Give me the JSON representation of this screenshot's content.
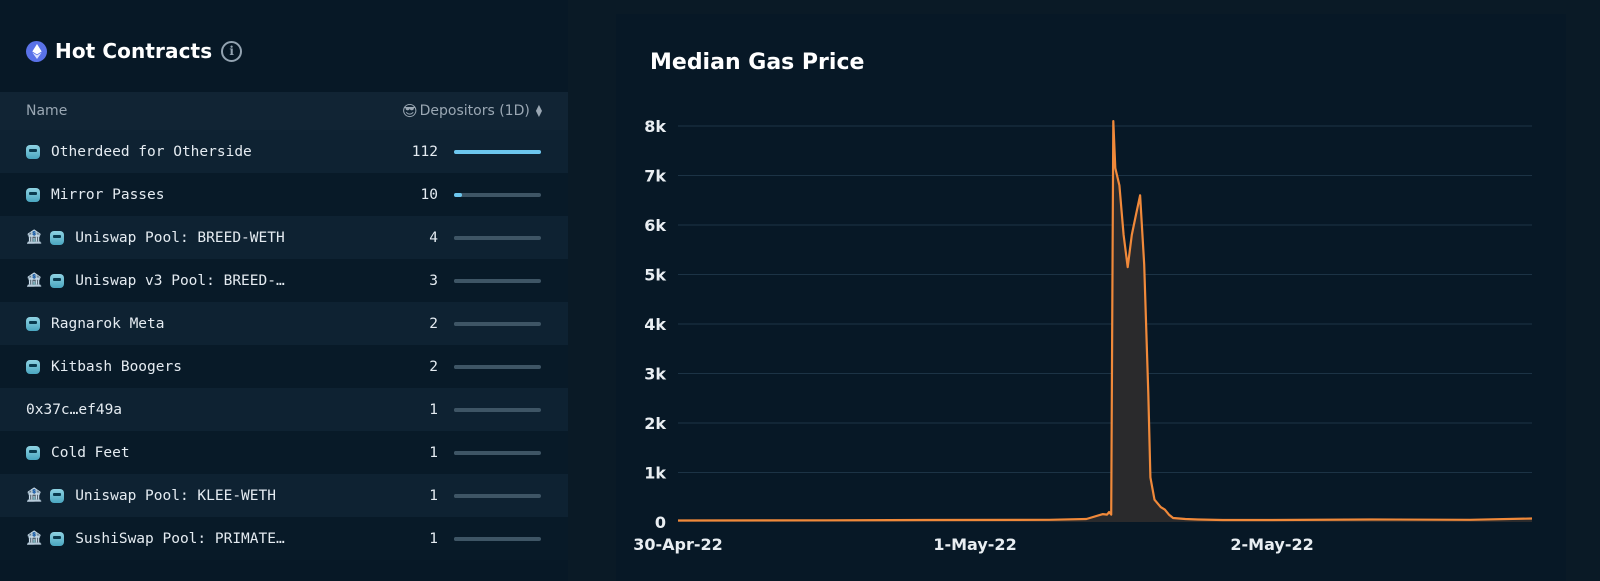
{
  "hot_contracts": {
    "title": "Hot Contracts",
    "info_icon": "ⓘ",
    "columns": {
      "name": "Name",
      "depositors": "Depositors (1D)",
      "depositors_emoji": "😎"
    },
    "accent_bar": "#6cc6ee",
    "rows": [
      {
        "name": "Otherdeed for Otherside",
        "count": "112",
        "value": 112,
        "pool": false,
        "nft": true
      },
      {
        "name": "Mirror Passes",
        "count": "10",
        "value": 10,
        "pool": false,
        "nft": true
      },
      {
        "name": "Uniswap Pool: BREED-WETH",
        "count": "4",
        "value": 4,
        "pool": true,
        "nft": true
      },
      {
        "name": "Uniswap v3 Pool: BREED-…",
        "count": "3",
        "value": 3,
        "pool": true,
        "nft": true
      },
      {
        "name": "Ragnarok Meta",
        "count": "2",
        "value": 2,
        "pool": false,
        "nft": true
      },
      {
        "name": "Kitbash Boogers",
        "count": "2",
        "value": 2,
        "pool": false,
        "nft": true
      },
      {
        "name": "0x37c…ef49a",
        "count": "1",
        "value": 1,
        "pool": false,
        "nft": false
      },
      {
        "name": "Cold Feet",
        "count": "1",
        "value": 1,
        "pool": false,
        "nft": true
      },
      {
        "name": "Uniswap Pool: KLEE-WETH",
        "count": "1",
        "value": 1,
        "pool": true,
        "nft": true
      },
      {
        "name": "SushiSwap Pool: PRIMATE…",
        "count": "1",
        "value": 1,
        "pool": true,
        "nft": true
      }
    ]
  },
  "gas_chart": {
    "title": "Median Gas Price"
  },
  "chart_data": {
    "type": "area",
    "title": "Median Gas Price",
    "xlabel": "",
    "ylabel": "",
    "color": "#f0893a",
    "fill": "#2a2a2c",
    "ylim": [
      0,
      8000
    ],
    "yticks": [
      0,
      1000,
      2000,
      3000,
      4000,
      5000,
      6000,
      7000,
      8000
    ],
    "ytick_labels": [
      "0",
      "1k",
      "2k",
      "3k",
      "4k",
      "5k",
      "6k",
      "7k",
      "8k"
    ],
    "xlim": [
      "2022-04-30T00:00",
      "2022-05-02T21:00"
    ],
    "xticks": [
      "2022-04-30T00:00",
      "2022-05-01T00:00",
      "2022-05-02T00:00"
    ],
    "xtick_labels": [
      "30-Apr-22",
      "1-May-22",
      "2-May-22"
    ],
    "grid": true,
    "series": [
      {
        "x": [
          "2022-04-30T00:00",
          "2022-04-30T12:00",
          "2022-04-30T20:00",
          "2022-05-01T06:00",
          "2022-05-01T09:00",
          "2022-05-01T10:20",
          "2022-05-01T10:40",
          "2022-05-01T10:50",
          "2022-05-01T11:00",
          "2022-05-01T11:10",
          "2022-05-01T11:20",
          "2022-05-01T11:40",
          "2022-05-01T12:00",
          "2022-05-01T12:20",
          "2022-05-01T12:40",
          "2022-05-01T13:00",
          "2022-05-01T13:20",
          "2022-05-01T13:40",
          "2022-05-01T14:00",
          "2022-05-01T14:10",
          "2022-05-01T14:30",
          "2022-05-01T15:00",
          "2022-05-01T15:20",
          "2022-05-01T15:40",
          "2022-05-01T16:00",
          "2022-05-01T17:00",
          "2022-05-01T18:00",
          "2022-05-01T20:00",
          "2022-05-02T00:00",
          "2022-05-02T08:00",
          "2022-05-02T16:00",
          "2022-05-02T21:00"
        ],
        "values": [
          30,
          35,
          40,
          45,
          60,
          160,
          150,
          200,
          150,
          8100,
          7150,
          6800,
          5800,
          5150,
          5800,
          6200,
          6600,
          5200,
          2600,
          900,
          450,
          300,
          250,
          150,
          80,
          60,
          50,
          40,
          40,
          50,
          45,
          70
        ]
      }
    ]
  }
}
